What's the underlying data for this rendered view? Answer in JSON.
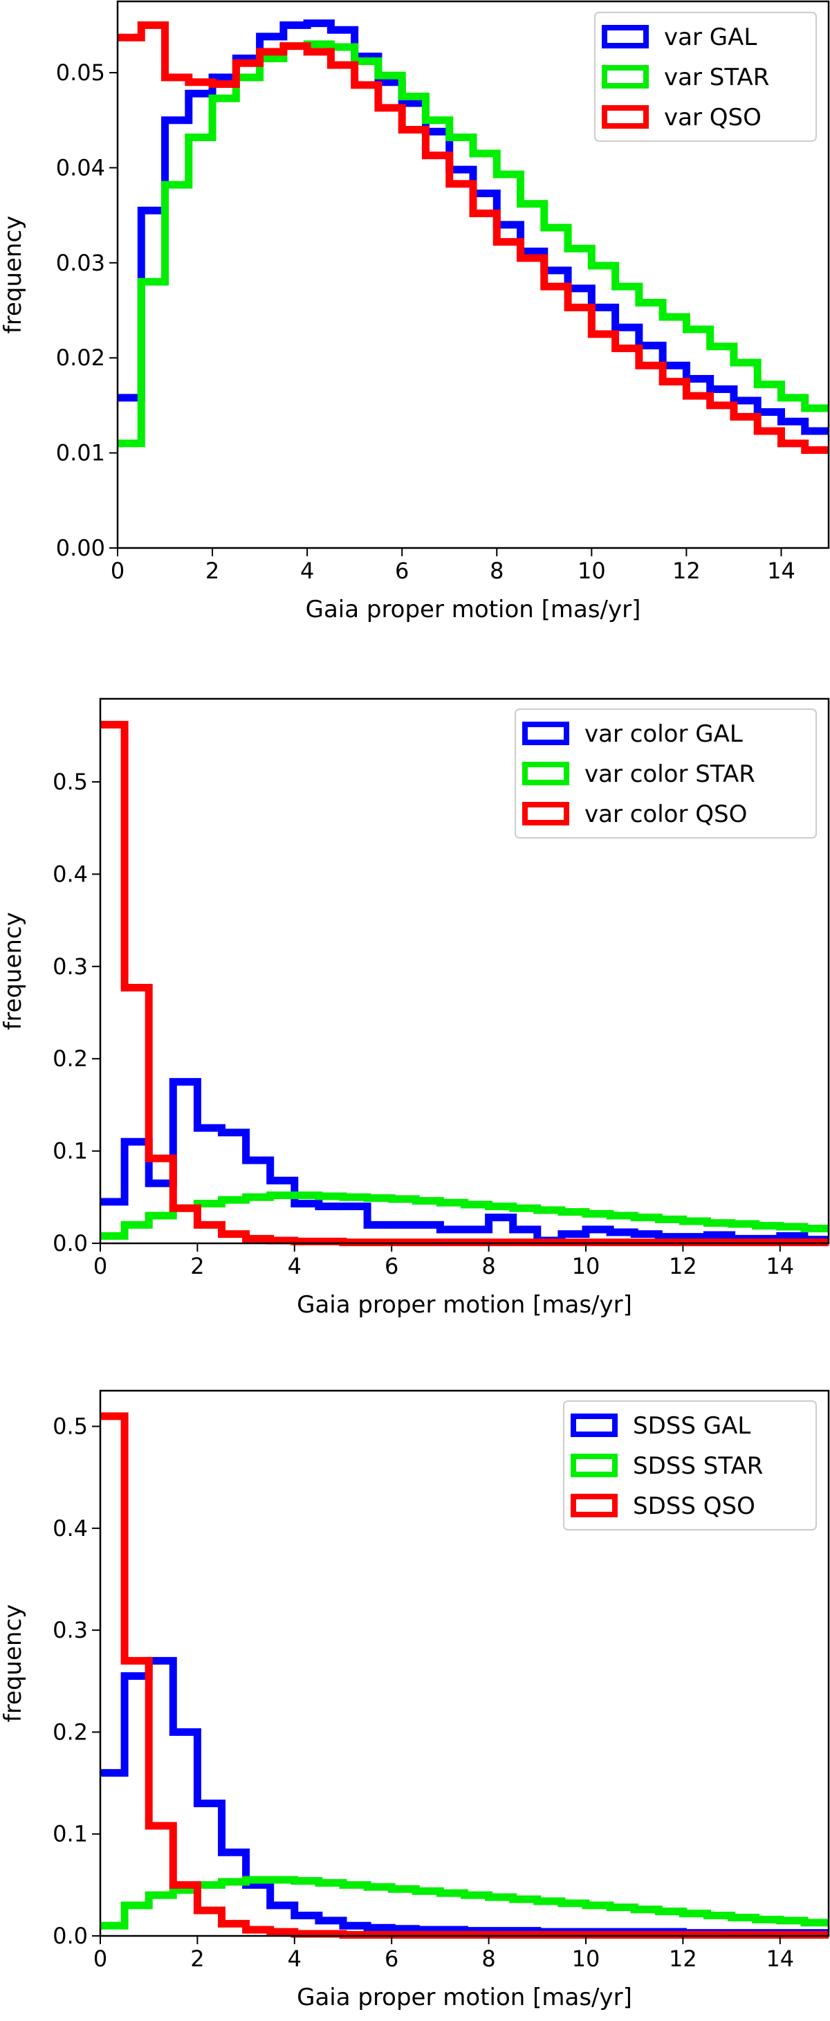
{
  "chart_data": [
    {
      "type": "step-histogram",
      "xlabel": "Gaia proper motion [mas/yr]",
      "ylabel": "frequency",
      "xlim": [
        0,
        15
      ],
      "ylim": [
        0,
        0.0575
      ],
      "xticks": [
        "0",
        "2",
        "4",
        "6",
        "8",
        "10",
        "12",
        "14"
      ],
      "yticks": [
        "0.00",
        "0.01",
        "0.02",
        "0.03",
        "0.04",
        "0.05"
      ],
      "bin_width": 0.5,
      "legend_position": "top-right",
      "grid": false,
      "series": [
        {
          "name": "var GAL",
          "color": "#0000ff",
          "values": [
            0.0158,
            0.0355,
            0.045,
            0.0478,
            0.0495,
            0.0515,
            0.0538,
            0.055,
            0.0552,
            0.0545,
            0.0517,
            0.049,
            0.0468,
            0.0438,
            0.0398,
            0.0373,
            0.034,
            0.0312,
            0.0292,
            0.0273,
            0.0253,
            0.0232,
            0.0213,
            0.0192,
            0.0178,
            0.0167,
            0.0155,
            0.0143,
            0.0133,
            0.0123
          ]
        },
        {
          "name": "var STAR",
          "color": "#00ee00",
          "values": [
            0.011,
            0.028,
            0.0382,
            0.0432,
            0.0473,
            0.0495,
            0.0515,
            0.0528,
            0.053,
            0.0527,
            0.0512,
            0.0497,
            0.0475,
            0.045,
            0.0432,
            0.0415,
            0.0393,
            0.0362,
            0.0337,
            0.0315,
            0.0297,
            0.0275,
            0.0258,
            0.0243,
            0.023,
            0.0212,
            0.0195,
            0.0172,
            0.0158,
            0.0147
          ]
        },
        {
          "name": "var QSO",
          "color": "#ff0000",
          "values": [
            0.0537,
            0.055,
            0.0495,
            0.049,
            0.0488,
            0.051,
            0.0522,
            0.0528,
            0.0522,
            0.0508,
            0.0487,
            0.0463,
            0.044,
            0.0413,
            0.0383,
            0.0352,
            0.0322,
            0.0305,
            0.0275,
            0.0253,
            0.0225,
            0.021,
            0.0192,
            0.0175,
            0.016,
            0.015,
            0.0138,
            0.0123,
            0.011,
            0.0103
          ]
        }
      ]
    },
    {
      "type": "step-histogram",
      "xlabel": "Gaia proper motion [mas/yr]",
      "ylabel": "frequency",
      "xlim": [
        0,
        15
      ],
      "ylim": [
        0,
        0.59
      ],
      "xticks": [
        "0",
        "2",
        "4",
        "6",
        "8",
        "10",
        "12",
        "14"
      ],
      "yticks": [
        "0.0",
        "0.1",
        "0.2",
        "0.3",
        "0.4",
        "0.5"
      ],
      "bin_width": 0.5,
      "legend_position": "top-right",
      "grid": false,
      "series": [
        {
          "name": "var color GAL",
          "color": "#0000ff",
          "values": [
            0.045,
            0.11,
            0.065,
            0.175,
            0.125,
            0.12,
            0.09,
            0.068,
            0.043,
            0.04,
            0.04,
            0.02,
            0.02,
            0.02,
            0.015,
            0.015,
            0.028,
            0.015,
            0.003,
            0.01,
            0.015,
            0.012,
            0.01,
            0.007,
            0.007,
            0.009,
            0.005,
            0.005,
            0.008,
            0.004
          ]
        },
        {
          "name": "var color STAR",
          "color": "#00ee00",
          "values": [
            0.008,
            0.02,
            0.03,
            0.038,
            0.043,
            0.047,
            0.05,
            0.052,
            0.052,
            0.051,
            0.05,
            0.049,
            0.048,
            0.046,
            0.044,
            0.042,
            0.04,
            0.038,
            0.036,
            0.034,
            0.032,
            0.03,
            0.028,
            0.026,
            0.024,
            0.022,
            0.021,
            0.019,
            0.018,
            0.016
          ]
        },
        {
          "name": "var color QSO",
          "color": "#ff0000",
          "values": [
            0.562,
            0.277,
            0.092,
            0.038,
            0.02,
            0.01,
            0.005,
            0.003,
            0.002,
            0.002,
            0.001,
            0.001,
            0.001,
            0.001,
            0.001,
            0.001,
            0.001,
            0.001,
            0.001,
            0.001,
            0.001,
            0.001,
            0.001,
            0.001,
            0.001,
            0.001,
            0.001,
            0.001,
            0.001,
            0.001
          ]
        }
      ]
    },
    {
      "type": "step-histogram",
      "xlabel": "Gaia proper motion [mas/yr]",
      "ylabel": "frequency",
      "xlim": [
        0,
        15
      ],
      "ylim": [
        0,
        0.535
      ],
      "xticks": [
        "0",
        "2",
        "4",
        "6",
        "8",
        "10",
        "12",
        "14"
      ],
      "yticks": [
        "0.0",
        "0.1",
        "0.2",
        "0.3",
        "0.4",
        "0.5"
      ],
      "bin_width": 0.5,
      "legend_position": "top-right",
      "grid": false,
      "series": [
        {
          "name": "SDSS GAL",
          "color": "#0000ff",
          "values": [
            0.16,
            0.255,
            0.27,
            0.2,
            0.13,
            0.082,
            0.05,
            0.03,
            0.02,
            0.015,
            0.01,
            0.008,
            0.007,
            0.006,
            0.006,
            0.005,
            0.005,
            0.005,
            0.004,
            0.004,
            0.004,
            0.004,
            0.004,
            0.004,
            0.003,
            0.003,
            0.003,
            0.003,
            0.003,
            0.003
          ]
        },
        {
          "name": "SDSS STAR",
          "color": "#00ee00",
          "values": [
            0.01,
            0.03,
            0.04,
            0.045,
            0.05,
            0.053,
            0.055,
            0.055,
            0.054,
            0.052,
            0.05,
            0.048,
            0.046,
            0.044,
            0.042,
            0.04,
            0.038,
            0.036,
            0.034,
            0.032,
            0.03,
            0.028,
            0.026,
            0.024,
            0.022,
            0.02,
            0.018,
            0.016,
            0.015,
            0.013
          ]
        },
        {
          "name": "SDSS QSO",
          "color": "#ff0000",
          "values": [
            0.51,
            0.27,
            0.108,
            0.05,
            0.025,
            0.012,
            0.006,
            0.004,
            0.002,
            0.002,
            0.001,
            0.001,
            0.001,
            0.001,
            0.001,
            0.001,
            0.001,
            0.001,
            0.001,
            0.001,
            0.001,
            0.001,
            0.001,
            0.001,
            0.001,
            0.001,
            0.001,
            0.001,
            0.001,
            0.001
          ]
        }
      ]
    }
  ]
}
